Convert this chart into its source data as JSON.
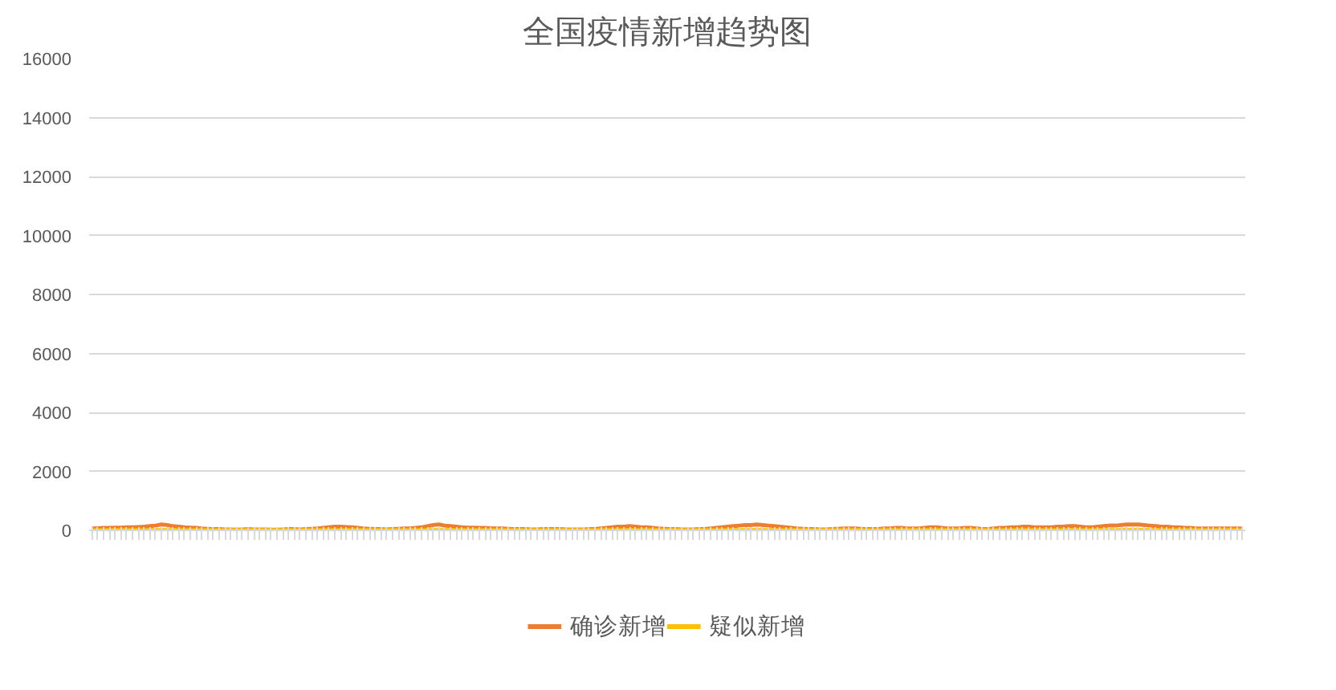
{
  "chart_data": {
    "type": "line",
    "title": "全国疫情新增趋势图",
    "categories": [
      null,
      null,
      null,
      null,
      null,
      null,
      null,
      null,
      null,
      null,
      null,
      null,
      null,
      null,
      null,
      null,
      null,
      null,
      null,
      null,
      null,
      null,
      null,
      null,
      null,
      null,
      null,
      null,
      null,
      null,
      null,
      null,
      null,
      null,
      null,
      null,
      null,
      null,
      null,
      null,
      null,
      null,
      null,
      null,
      null,
      null,
      null,
      null,
      null,
      null,
      null,
      null,
      null,
      null,
      null,
      null,
      null,
      null,
      null,
      null,
      null,
      null,
      null,
      null,
      null,
      null,
      null,
      null,
      null,
      null,
      null,
      null,
      null,
      null,
      null,
      null,
      null,
      null,
      null,
      null,
      null,
      null,
      null,
      null,
      null,
      null,
      null,
      null,
      null,
      null,
      null,
      null,
      null,
      null,
      null,
      null,
      null,
      null,
      null,
      null,
      null,
      null,
      null,
      null,
      null,
      null,
      null,
      null,
      null,
      null,
      null,
      null,
      null,
      null,
      null,
      null,
      null,
      null,
      null,
      null,
      null,
      null,
      null,
      null,
      null,
      null,
      null,
      null,
      null,
      null,
      null,
      null,
      null,
      null,
      null,
      null,
      null,
      null,
      null,
      null,
      null,
      null,
      null,
      null,
      null,
      null,
      null,
      null,
      null,
      null,
      null,
      null,
      null,
      null,
      null,
      null,
      null,
      null,
      null,
      null,
      null,
      null,
      null,
      null,
      null,
      null,
      null,
      null,
      null,
      null,
      null,
      null,
      null,
      null,
      null,
      null,
      null,
      null,
      null,
      null,
      null,
      null,
      null,
      null,
      null,
      null,
      null,
      null,
      null,
      null,
      null,
      null,
      null,
      null,
      null,
      null,
      null,
      null,
      null,
      null
    ],
    "series": [
      {
        "name": "确诊新增",
        "color": "#ed7d31",
        "values": [
          60,
          70,
          80,
          80,
          90,
          90,
          100,
          100,
          110,
          120,
          140,
          160,
          200,
          180,
          140,
          120,
          100,
          90,
          80,
          60,
          50,
          40,
          40,
          30,
          30,
          20,
          30,
          40,
          30,
          30,
          30,
          20,
          20,
          30,
          40,
          40,
          30,
          40,
          50,
          60,
          80,
          100,
          120,
          120,
          110,
          100,
          80,
          60,
          50,
          40,
          40,
          30,
          40,
          50,
          60,
          60,
          80,
          100,
          140,
          180,
          200,
          160,
          140,
          120,
          100,
          90,
          90,
          80,
          80,
          70,
          60,
          60,
          50,
          40,
          40,
          40,
          30,
          30,
          40,
          40,
          40,
          40,
          30,
          30,
          30,
          30,
          40,
          40,
          60,
          80,
          100,
          120,
          120,
          140,
          120,
          100,
          100,
          80,
          60,
          50,
          40,
          40,
          30,
          30,
          30,
          40,
          40,
          60,
          80,
          100,
          120,
          140,
          160,
          180,
          180,
          200,
          180,
          160,
          140,
          120,
          100,
          80,
          60,
          50,
          40,
          40,
          30,
          30,
          40,
          50,
          60,
          60,
          60,
          50,
          40,
          40,
          40,
          60,
          60,
          80,
          80,
          60,
          60,
          60,
          80,
          100,
          100,
          80,
          60,
          60,
          60,
          80,
          80,
          60,
          40,
          40,
          60,
          80,
          80,
          100,
          100,
          120,
          120,
          100,
          100,
          100,
          100,
          120,
          120,
          140,
          140,
          120,
          100,
          100,
          120,
          140,
          160,
          160,
          180,
          200,
          200,
          200,
          180,
          160,
          140,
          120,
          120,
          100,
          100,
          80,
          80,
          60,
          60,
          60,
          60,
          60,
          60,
          60,
          60,
          60
        ]
      },
      {
        "name": "疑似新增",
        "color": "#ffc000",
        "values": [
          10,
          10,
          10,
          10,
          10,
          10,
          10,
          10,
          10,
          10,
          10,
          10,
          10,
          10,
          10,
          10,
          10,
          10,
          10,
          10,
          10,
          10,
          10,
          10,
          10,
          10,
          10,
          10,
          10,
          10,
          10,
          10,
          10,
          10,
          10,
          10,
          10,
          10,
          10,
          10,
          10,
          10,
          10,
          10,
          10,
          10,
          10,
          10,
          10,
          10,
          10,
          10,
          10,
          10,
          10,
          10,
          10,
          10,
          10,
          10,
          10,
          10,
          10,
          10,
          10,
          10,
          10,
          10,
          10,
          10,
          10,
          10,
          10,
          10,
          10,
          10,
          10,
          10,
          10,
          10,
          10,
          10,
          10,
          10,
          10,
          10,
          10,
          10,
          10,
          10,
          10,
          10,
          10,
          10,
          10,
          10,
          10,
          10,
          10,
          10,
          10,
          10,
          10,
          10,
          10,
          10,
          10,
          10,
          10,
          10,
          10,
          10,
          10,
          10,
          10,
          10,
          10,
          10,
          10,
          10,
          10,
          10,
          10,
          10,
          10,
          10,
          10,
          10,
          10,
          10,
          10,
          10,
          10,
          10,
          10,
          10,
          10,
          10,
          10,
          10,
          10,
          10,
          10,
          10,
          10,
          10,
          10,
          10,
          10,
          10,
          10,
          10,
          10,
          10,
          10,
          10,
          10,
          10,
          10,
          10,
          10,
          10,
          10,
          10,
          10,
          10,
          10,
          10,
          10,
          10,
          10,
          10,
          10,
          10,
          10,
          10,
          10,
          10,
          10,
          10,
          10,
          10,
          10,
          10,
          10,
          10,
          10,
          10,
          10,
          10,
          10,
          10,
          10,
          10,
          10,
          10,
          10,
          10,
          10,
          10
        ]
      }
    ],
    "ylim": [
      0,
      16000
    ],
    "yticks": [
      0,
      2000,
      4000,
      6000,
      8000,
      10000,
      12000,
      14000,
      16000
    ],
    "grid": "y",
    "legend": "bottom",
    "line_style": "solid",
    "marker": "none"
  }
}
